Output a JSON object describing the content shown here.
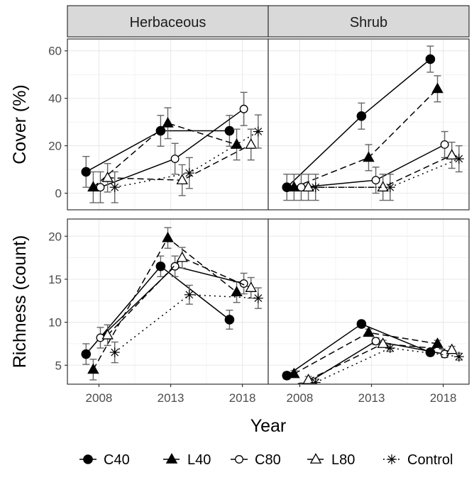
{
  "figure": {
    "x_axis_title": "Year",
    "facet_columns": [
      "Herbaceous",
      "Shrub"
    ],
    "legend": [
      {
        "label": "C40",
        "marker": "filled-circle",
        "line": "solid"
      },
      {
        "label": "L40",
        "marker": "filled-triangle",
        "line": "dashed"
      },
      {
        "label": "C80",
        "marker": "open-circle",
        "line": "solid"
      },
      {
        "label": "L80",
        "marker": "open-triangle",
        "line": "dashed"
      },
      {
        "label": "Control",
        "marker": "asterisk",
        "line": "dotted"
      }
    ],
    "legend_position": "bottom",
    "colors": {
      "ink": "#000000",
      "errorbar": "#666666",
      "strip": "#d9d9d9",
      "grid": "#ebebeb"
    }
  },
  "chart_data": [
    {
      "type": "line",
      "panel": "Herbaceous",
      "ylabel": "Cover (%)",
      "xlim": [
        2005.8,
        2019.8
      ],
      "ylim": [
        -7,
        65
      ],
      "xticks": [
        2008,
        2013,
        2018
      ],
      "yticks": [
        0,
        20,
        40,
        60
      ],
      "grid": true,
      "series": [
        {
          "name": "C40",
          "x": [
            2007.1,
            2012.3,
            2017.1
          ],
          "y": [
            9,
            26.3,
            26.3
          ],
          "err": [
            6.5,
            6.5,
            6.5
          ]
        },
        {
          "name": "L40",
          "x": [
            2007.6,
            2012.8,
            2017.6
          ],
          "y": [
            2.5,
            29.5,
            20.5
          ],
          "err": [
            6.5,
            6.5,
            6.5
          ]
        },
        {
          "name": "C80",
          "x": [
            2008.1,
            2013.3,
            2018.1
          ],
          "y": [
            2.5,
            14.5,
            35.5
          ],
          "err": [
            6.5,
            6.5,
            7
          ]
        },
        {
          "name": "L80",
          "x": [
            2008.6,
            2013.8,
            2018.6
          ],
          "y": [
            6.5,
            5.5,
            20.5
          ],
          "err": [
            6,
            6.5,
            6.5
          ]
        },
        {
          "name": "Control",
          "x": [
            2009.1,
            2014.3,
            2019.1
          ],
          "y": [
            2.5,
            8.5,
            26
          ],
          "err": [
            6.5,
            6.5,
            7
          ]
        }
      ]
    },
    {
      "type": "line",
      "panel": "Shrub",
      "ylabel": "Cover (%)",
      "xlim": [
        2005.8,
        2019.8
      ],
      "ylim": [
        -7,
        65
      ],
      "xticks": [
        2008,
        2013,
        2018
      ],
      "yticks": [
        0,
        20,
        40,
        60
      ],
      "grid": true,
      "series": [
        {
          "name": "C40",
          "x": [
            2007.1,
            2012.3,
            2017.1
          ],
          "y": [
            2.5,
            32.5,
            56.5
          ],
          "err": [
            5.5,
            5.5,
            5.5
          ]
        },
        {
          "name": "L40",
          "x": [
            2007.6,
            2012.8,
            2017.6
          ],
          "y": [
            2.5,
            15,
            44
          ],
          "err": [
            5.5,
            5.5,
            5.5
          ]
        },
        {
          "name": "C80",
          "x": [
            2008.1,
            2013.3,
            2018.1
          ],
          "y": [
            2.5,
            5.5,
            20.5
          ],
          "err": [
            5.5,
            5.5,
            5.5
          ]
        },
        {
          "name": "L80",
          "x": [
            2008.6,
            2013.8,
            2018.6
          ],
          "y": [
            2.5,
            2.5,
            16
          ],
          "err": [
            5.5,
            5.5,
            5.5
          ]
        },
        {
          "name": "Control",
          "x": [
            2009.1,
            2014.3,
            2019.1
          ],
          "y": [
            2.5,
            2.5,
            14.5
          ],
          "err": [
            5.5,
            5.5,
            5.5
          ]
        }
      ]
    },
    {
      "type": "line",
      "panel": "Herbaceous",
      "ylabel": "Richness (count)",
      "xlim": [
        2005.8,
        2019.8
      ],
      "ylim": [
        2.8,
        22
      ],
      "xticks": [
        2008,
        2013,
        2018
      ],
      "yticks": [
        5,
        10,
        15,
        20
      ],
      "grid": true,
      "series": [
        {
          "name": "C40",
          "x": [
            2007.1,
            2012.3,
            2017.1
          ],
          "y": [
            6.3,
            16.5,
            10.3
          ],
          "err": [
            1.2,
            1.2,
            1.1
          ]
        },
        {
          "name": "L40",
          "x": [
            2007.6,
            2012.8,
            2017.6
          ],
          "y": [
            4.5,
            19.8,
            13.5
          ],
          "err": [
            1.2,
            1.2,
            1.2
          ]
        },
        {
          "name": "C80",
          "x": [
            2008.1,
            2013.3,
            2018.1
          ],
          "y": [
            8.2,
            16.5,
            14.5
          ],
          "err": [
            1.2,
            1.2,
            1.2
          ]
        },
        {
          "name": "L80",
          "x": [
            2008.6,
            2013.8,
            2018.6
          ],
          "y": [
            8.5,
            17.5,
            14
          ],
          "err": [
            1.2,
            1.2,
            1.2
          ]
        },
        {
          "name": "Control",
          "x": [
            2009.1,
            2014.3,
            2019.1
          ],
          "y": [
            6.5,
            13.2,
            12.8
          ],
          "err": [
            1.2,
            1.1,
            1.2
          ]
        }
      ]
    },
    {
      "type": "line",
      "panel": "Shrub",
      "ylabel": "Richness (count)",
      "xlim": [
        2005.8,
        2019.8
      ],
      "ylim": [
        2.8,
        22
      ],
      "xticks": [
        2008,
        2013,
        2018
      ],
      "yticks": [
        5,
        10,
        15,
        20
      ],
      "grid": true,
      "series": [
        {
          "name": "C40",
          "x": [
            2007.1,
            2012.3,
            2017.1
          ],
          "y": [
            3.8,
            9.8,
            6.5
          ],
          "err": [
            0.4,
            0.4,
            0.4
          ]
        },
        {
          "name": "L40",
          "x": [
            2007.6,
            2012.8,
            2017.6
          ],
          "y": [
            4,
            8.8,
            7.5
          ],
          "err": [
            0.4,
            0.4,
            0.4
          ]
        },
        {
          "name": "C80",
          "x": [
            2008.1,
            2013.3,
            2018.1
          ],
          "y": [
            2.5,
            7.8,
            6.3
          ],
          "err": [
            0.4,
            0.4,
            0.4
          ]
        },
        {
          "name": "L80",
          "x": [
            2008.6,
            2013.8,
            2018.6
          ],
          "y": [
            3.3,
            7.5,
            6.8
          ],
          "err": [
            0.4,
            0.4,
            0.4
          ]
        },
        {
          "name": "Control",
          "x": [
            2009.1,
            2014.3,
            2019.1
          ],
          "y": [
            3,
            7,
            6
          ],
          "err": [
            0.4,
            0.4,
            0.4
          ]
        }
      ]
    }
  ]
}
